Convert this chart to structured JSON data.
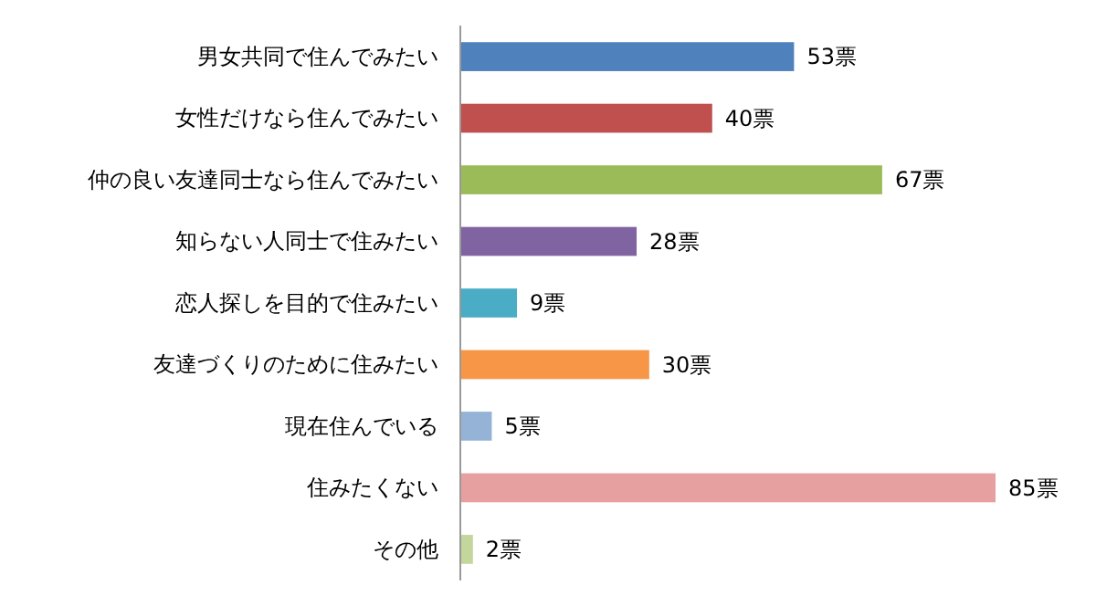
{
  "chart_data": {
    "type": "bar",
    "orientation": "horizontal",
    "categories": [
      "男女共同で住んでみたい",
      "女性だけなら住んでみたい",
      "仲の良い友達同士なら住んでみたい",
      "知らない人同士で住みたい",
      "恋人探しを目的で住みたい",
      "友達づくりのために住みたい",
      "現在住んでいる",
      "住みたくない",
      "その他"
    ],
    "values": [
      53,
      40,
      67,
      28,
      9,
      30,
      5,
      85,
      2
    ],
    "value_labels": [
      "53票",
      "40票",
      "67票",
      "28票",
      "9票",
      "30票",
      "5票",
      "85票",
      "2票"
    ],
    "colors": [
      "#4f81bd",
      "#c0504d",
      "#9bbb59",
      "#8064a2",
      "#4bacc6",
      "#f79646",
      "#95b3d7",
      "#e6a0a0",
      "#c3d69b"
    ],
    "tick_labels": "y",
    "grid": false
  }
}
